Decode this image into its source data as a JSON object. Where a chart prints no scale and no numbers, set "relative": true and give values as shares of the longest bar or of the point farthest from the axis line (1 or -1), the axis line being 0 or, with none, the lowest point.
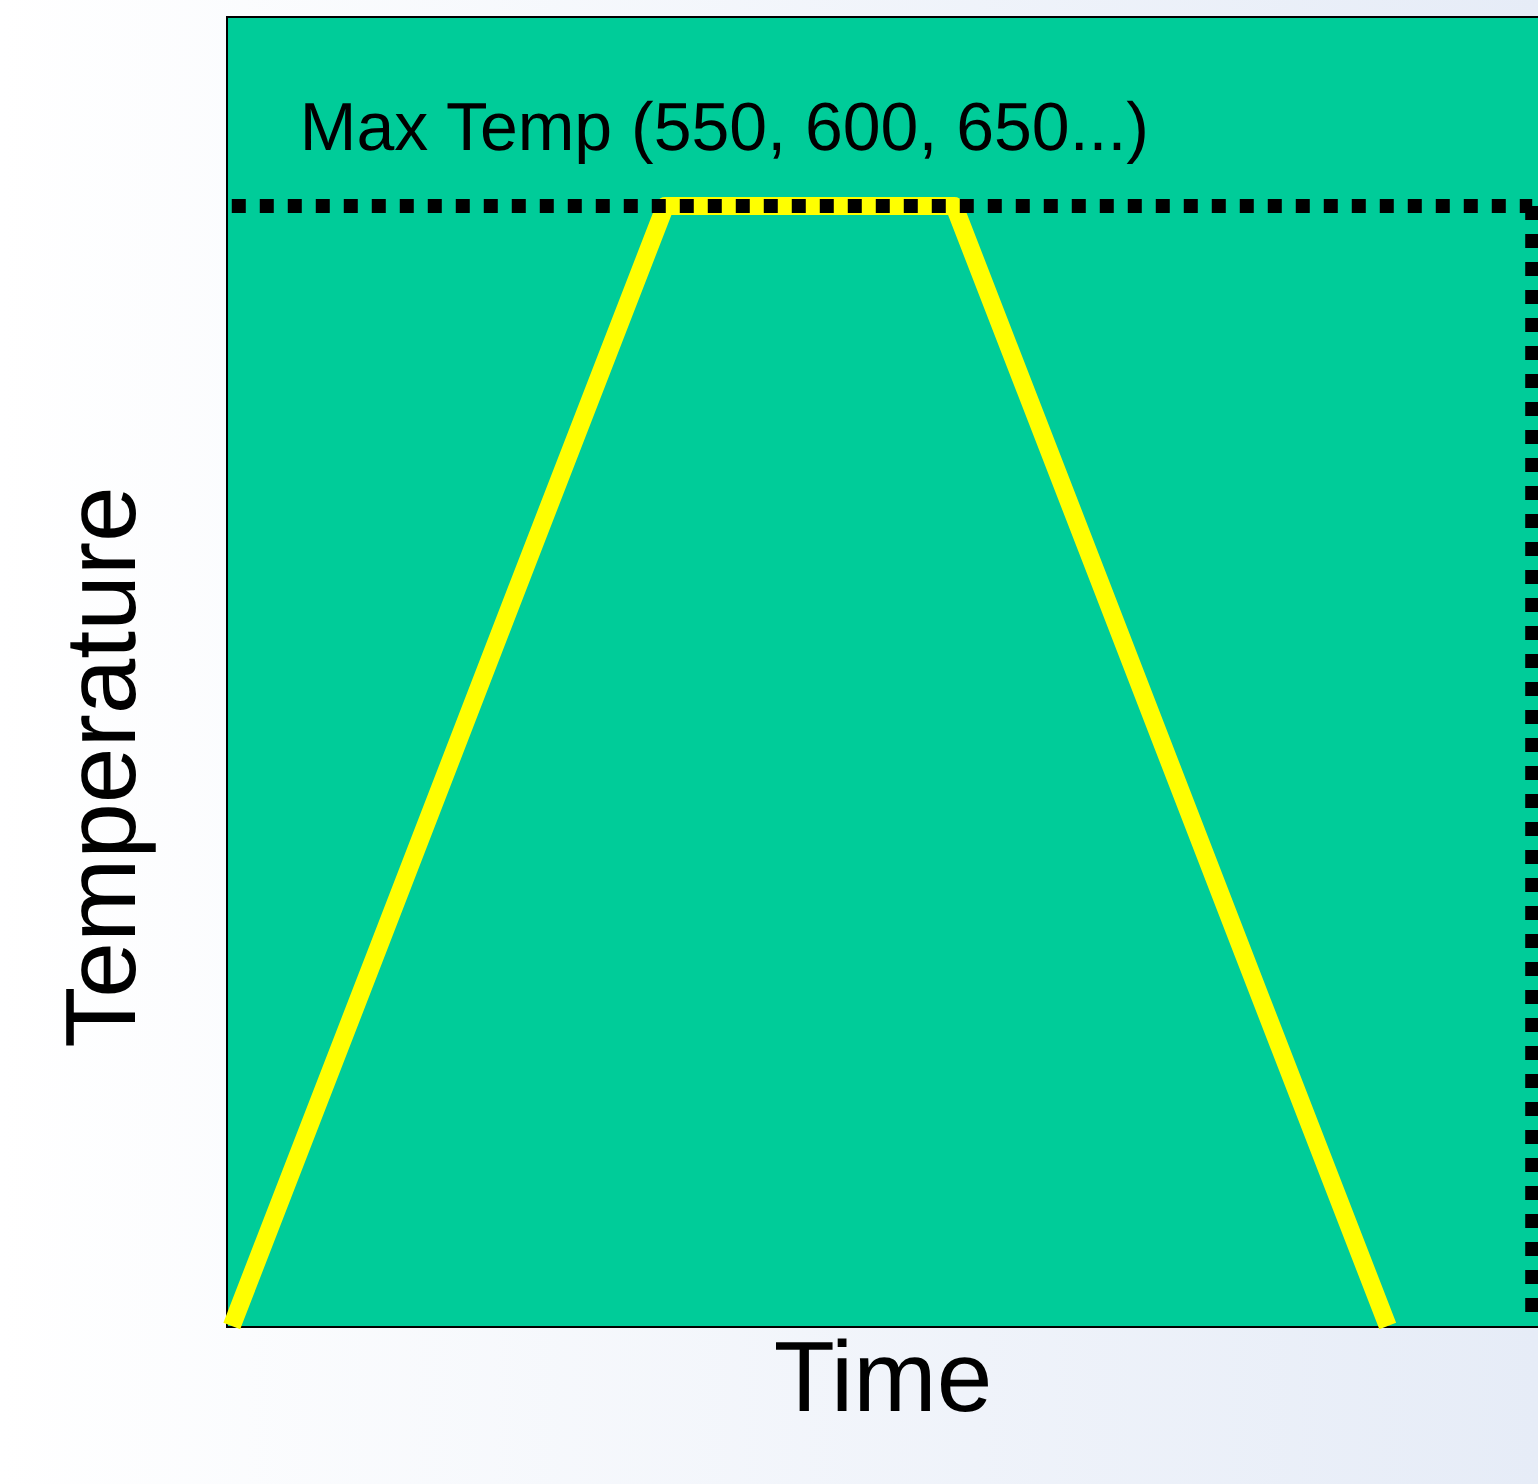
{
  "chart_data": {
    "type": "line",
    "relative": true,
    "xlabel": "Time",
    "ylabel": "Temperature",
    "grid": false,
    "categories": [
      null,
      null,
      null,
      null,
      null,
      null,
      null,
      null,
      null,
      null
    ],
    "series": [
      {
        "color": "#ffff00",
        "values": [
          0,
          0.333,
          0.667,
          1,
          1,
          1,
          0.667,
          0.333,
          0,
          null
        ]
      }
    ],
    "ref_lines": [
      {
        "axis": "y",
        "value": 1,
        "label": "Max Temp (550, 600, 650...)",
        "color": "#000000",
        "line_style": "dotted"
      }
    ]
  }
}
